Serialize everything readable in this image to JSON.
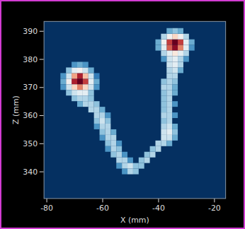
{
  "chart_data": {
    "type": "heatmap",
    "xlabel": "X (mm)",
    "ylabel": "Z (mm)",
    "xlim": [
      -81,
      -16
    ],
    "ylim": [
      330.5,
      393.5
    ],
    "xticks": [
      -80,
      -60,
      -40,
      -20
    ],
    "yticks": [
      340,
      350,
      360,
      370,
      380,
      390
    ],
    "color_range": [
      0,
      1
    ],
    "cells": [
      [
        -68,
        372,
        1.0
      ],
      [
        -70,
        372,
        0.9
      ],
      [
        -66,
        372,
        0.85
      ],
      [
        -68,
        374,
        0.9
      ],
      [
        -68,
        370,
        0.75
      ],
      [
        -70,
        374,
        0.7
      ],
      [
        -66,
        374,
        0.65
      ],
      [
        -70,
        370,
        0.6
      ],
      [
        -66,
        370,
        0.6
      ],
      [
        -72,
        372,
        0.5
      ],
      [
        -64,
        372,
        0.45
      ],
      [
        -68,
        376,
        0.5
      ],
      [
        -68,
        368,
        0.45
      ],
      [
        -72,
        374,
        0.4
      ],
      [
        -72,
        370,
        0.4
      ],
      [
        -64,
        374,
        0.4
      ],
      [
        -64,
        370,
        0.4
      ],
      [
        -70,
        376,
        0.45
      ],
      [
        -66,
        376,
        0.4
      ],
      [
        -70,
        368,
        0.4
      ],
      [
        -66,
        368,
        0.45
      ],
      [
        -74,
        372,
        0.25
      ],
      [
        -62,
        372,
        0.25
      ],
      [
        -68,
        378,
        0.25
      ],
      [
        -72,
        376,
        0.3
      ],
      [
        -64,
        376,
        0.25
      ],
      [
        -72,
        368,
        0.3
      ],
      [
        -64,
        368,
        0.3
      ],
      [
        -70,
        378,
        0.2
      ],
      [
        -66,
        378,
        0.2
      ],
      [
        -74,
        370,
        0.2
      ],
      [
        -74,
        374,
        0.2
      ],
      [
        -62,
        370,
        0.2
      ],
      [
        -62,
        374,
        0.15
      ],
      [
        -70,
        366,
        0.3
      ],
      [
        -68,
        366,
        0.35
      ],
      [
        -66,
        366,
        0.35
      ],
      [
        -64,
        366,
        0.3
      ],
      [
        -66,
        364,
        0.35
      ],
      [
        -64,
        364,
        0.35
      ],
      [
        -62,
        364,
        0.3
      ],
      [
        -68,
        364,
        0.25
      ],
      [
        -64,
        362,
        0.35
      ],
      [
        -62,
        362,
        0.35
      ],
      [
        -60,
        362,
        0.25
      ],
      [
        -62,
        360,
        0.35
      ],
      [
        -60,
        360,
        0.35
      ],
      [
        -58,
        360,
        0.2
      ],
      [
        -62,
        358,
        0.3
      ],
      [
        -60,
        358,
        0.4
      ],
      [
        -58,
        358,
        0.3
      ],
      [
        -60,
        356,
        0.35
      ],
      [
        -58,
        356,
        0.35
      ],
      [
        -62,
        356,
        0.2
      ],
      [
        -60,
        354,
        0.3
      ],
      [
        -58,
        354,
        0.35
      ],
      [
        -56,
        354,
        0.25
      ],
      [
        -58,
        352,
        0.35
      ],
      [
        -56,
        352,
        0.35
      ],
      [
        -60,
        352,
        0.2
      ],
      [
        -58,
        350,
        0.3
      ],
      [
        -56,
        350,
        0.35
      ],
      [
        -54,
        350,
        0.2
      ],
      [
        -56,
        348,
        0.35
      ],
      [
        -54,
        348,
        0.3
      ],
      [
        -58,
        348,
        0.2
      ],
      [
        -56,
        346,
        0.3
      ],
      [
        -54,
        346,
        0.35
      ],
      [
        -52,
        346,
        0.2
      ],
      [
        -54,
        344,
        0.35
      ],
      [
        -52,
        344,
        0.35
      ],
      [
        -50,
        344,
        0.2
      ],
      [
        -52,
        342,
        0.35
      ],
      [
        -50,
        342,
        0.4
      ],
      [
        -48,
        342,
        0.3
      ],
      [
        -54,
        342,
        0.2
      ],
      [
        -50,
        340,
        0.35
      ],
      [
        -48,
        340,
        0.3
      ],
      [
        -52,
        340,
        0.2
      ],
      [
        -46,
        342,
        0.3
      ],
      [
        -46,
        344,
        0.3
      ],
      [
        -44,
        344,
        0.35
      ],
      [
        -44,
        346,
        0.3
      ],
      [
        -42,
        346,
        0.35
      ],
      [
        -42,
        348,
        0.3
      ],
      [
        -40,
        348,
        0.35
      ],
      [
        -40,
        350,
        0.35
      ],
      [
        -38,
        350,
        0.35
      ],
      [
        -36,
        350,
        0.25
      ],
      [
        -38,
        352,
        0.4
      ],
      [
        -36,
        352,
        0.4
      ],
      [
        -34,
        352,
        0.25
      ],
      [
        -38,
        354,
        0.4
      ],
      [
        -36,
        354,
        0.45
      ],
      [
        -34,
        354,
        0.3
      ],
      [
        -38,
        356,
        0.35
      ],
      [
        -36,
        356,
        0.4
      ],
      [
        -34,
        356,
        0.25
      ],
      [
        -38,
        358,
        0.3
      ],
      [
        -36,
        358,
        0.35
      ],
      [
        -38,
        360,
        0.35
      ],
      [
        -36,
        360,
        0.35
      ],
      [
        -34,
        360,
        0.2
      ],
      [
        -38,
        362,
        0.3
      ],
      [
        -36,
        362,
        0.35
      ],
      [
        -38,
        364,
        0.3
      ],
      [
        -36,
        364,
        0.35
      ],
      [
        -34,
        364,
        0.2
      ],
      [
        -38,
        366,
        0.3
      ],
      [
        -36,
        366,
        0.35
      ],
      [
        -38,
        368,
        0.3
      ],
      [
        -36,
        368,
        0.35
      ],
      [
        -34,
        368,
        0.25
      ],
      [
        -38,
        370,
        0.35
      ],
      [
        -36,
        370,
        0.35
      ],
      [
        -34,
        370,
        0.25
      ],
      [
        -38,
        372,
        0.3
      ],
      [
        -36,
        372,
        0.35
      ],
      [
        -34,
        372,
        0.3
      ],
      [
        -36,
        374,
        0.35
      ],
      [
        -34,
        374,
        0.35
      ],
      [
        -36,
        376,
        0.35
      ],
      [
        -34,
        376,
        0.4
      ],
      [
        -32,
        376,
        0.25
      ],
      [
        -36,
        378,
        0.4
      ],
      [
        -34,
        378,
        0.45
      ],
      [
        -32,
        378,
        0.35
      ],
      [
        -34,
        386,
        1.0
      ],
      [
        -34,
        384,
        0.95
      ],
      [
        -36,
        386,
        0.85
      ],
      [
        -32,
        386,
        0.85
      ],
      [
        -36,
        384,
        0.8
      ],
      [
        -32,
        384,
        0.75
      ],
      [
        -38,
        386,
        0.5
      ],
      [
        -30,
        386,
        0.45
      ],
      [
        -38,
        384,
        0.45
      ],
      [
        -30,
        384,
        0.45
      ],
      [
        -34,
        388,
        0.6
      ],
      [
        -36,
        388,
        0.5
      ],
      [
        -32,
        388,
        0.5
      ],
      [
        -34,
        382,
        0.55
      ],
      [
        -36,
        382,
        0.45
      ],
      [
        -32,
        382,
        0.45
      ],
      [
        -34,
        390,
        0.3
      ],
      [
        -36,
        390,
        0.25
      ],
      [
        -32,
        390,
        0.25
      ],
      [
        -40,
        386,
        0.25
      ],
      [
        -28,
        386,
        0.25
      ],
      [
        -40,
        384,
        0.25
      ],
      [
        -28,
        384,
        0.2
      ],
      [
        -38,
        388,
        0.35
      ],
      [
        -30,
        388,
        0.35
      ],
      [
        -38,
        382,
        0.35
      ],
      [
        -30,
        382,
        0.35
      ],
      [
        -34,
        380,
        0.45
      ],
      [
        -36,
        380,
        0.4
      ],
      [
        -32,
        380,
        0.35
      ],
      [
        -38,
        380,
        0.2
      ],
      [
        -30,
        380,
        0.2
      ]
    ]
  }
}
